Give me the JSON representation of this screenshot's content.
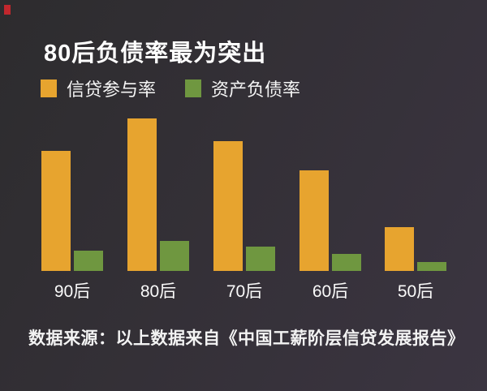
{
  "title": "80后负债率最为突出",
  "source_note": "数据来源：以上数据来自《中国工薪阶层信贷发展报告》",
  "colors": {
    "background_left": "#2d2c2e",
    "background_right": "#3b3541",
    "title_text": "#ffffff",
    "label_text": "#fafafa",
    "corner_mark": "#c1272d",
    "bar_orange": "#e7a42f",
    "bar_green": "#6f9740"
  },
  "chart_data": {
    "type": "bar",
    "title": "80后负债率最为突出",
    "categories": [
      "90后",
      "80后",
      "70后",
      "60后",
      "50后"
    ],
    "series": [
      {
        "key": "credit-participation-rate",
        "name": "信贷参与率",
        "color": "#e7a42f",
        "values": [
          74,
          94,
          80,
          62,
          27
        ]
      },
      {
        "key": "asset-debt-ratio",
        "name": "资产负债率",
        "color": "#6f9740",
        "values": [
          12.5,
          18.5,
          15,
          10.5,
          5.5
        ]
      }
    ],
    "ylim": [
      0,
      100
    ],
    "xlabel": "",
    "ylabel": "",
    "grid": false,
    "axes_labeled": false,
    "value_scale_note": "no axis ticks or data labels shown; values estimated from bar heights on an implied 0-100 scale",
    "legend_position": "top-left"
  }
}
